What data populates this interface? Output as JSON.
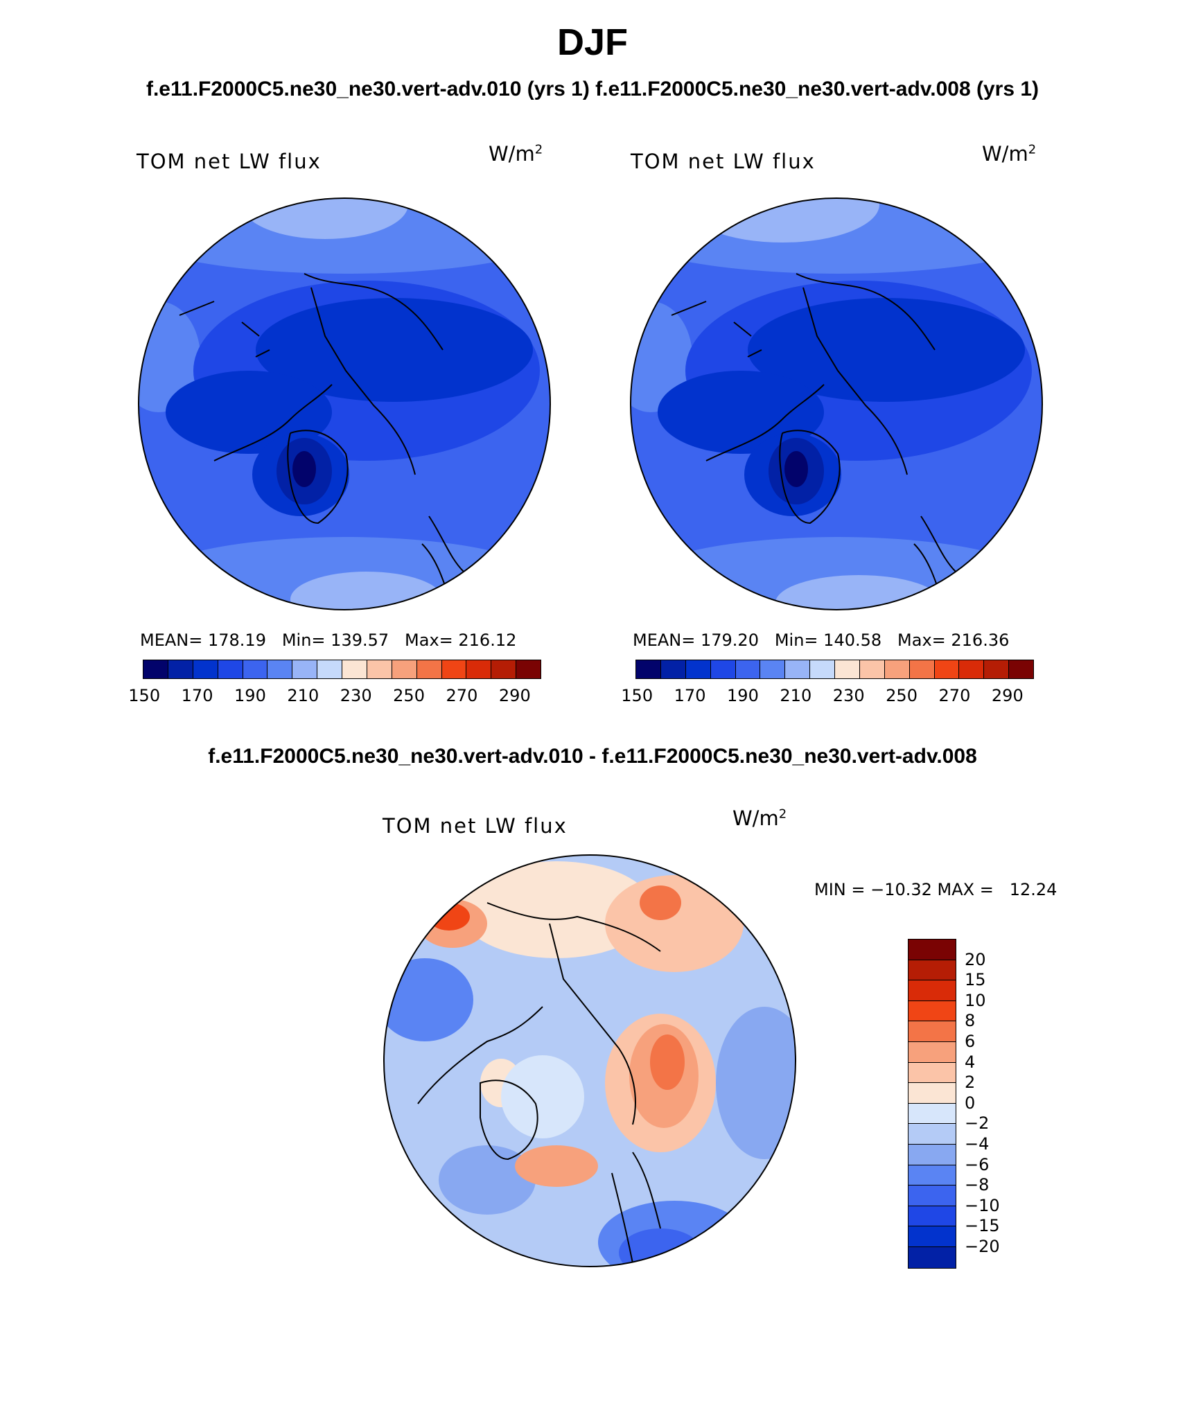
{
  "season": "DJF",
  "case_titles": "f.e11.F2000C5.ne30_ne30.vert-adv.010 (yrs 1) f.e11.F2000C5.ne30_ne30.vert-adv.008 (yrs 1)",
  "diff_title": "f.e11.F2000C5.ne30_ne30.vert-adv.010 - f.e11.F2000C5.ne30_ne30.vert-adv.008",
  "panels": [
    {
      "title": "TOM net LW flux",
      "units_base": "W/m",
      "units_exp": "2",
      "stats": "MEAN= 178.19   Min= 139.57   Max= 216.12"
    },
    {
      "title": "TOM net LW flux",
      "units_base": "W/m",
      "units_exp": "2",
      "stats": "MEAN= 179.20   Min= 140.58   Max= 216.36"
    }
  ],
  "diff_panel": {
    "title": "TOM net LW flux",
    "units_base": "W/m",
    "units_exp": "2",
    "stats": "MIN = −10.32 MAX =   12.24"
  },
  "colors": {
    "abs_levels": [
      "#02036b",
      "#0221a6",
      "#0233cd",
      "#1f47e6",
      "#3c64ef",
      "#5a84f3",
      "#98b4f7",
      "#c6dafb",
      "#fbe5d4",
      "#fbc4a8",
      "#f7a17c",
      "#f37447",
      "#f04515",
      "#d92b08",
      "#b51d05",
      "#7a0303"
    ],
    "diff_levels": [
      "#7a0303",
      "#b51d05",
      "#d92b08",
      "#f04515",
      "#f37447",
      "#f7a17c",
      "#fbc4a8",
      "#fbe5d4",
      "#d7e6fb",
      "#b4cbf6",
      "#88a8f1",
      "#5a84f3",
      "#3c64ef",
      "#1f47e6",
      "#0233cd",
      "#0221a6"
    ]
  },
  "chart_data": [
    {
      "type": "heatmap",
      "projection": "north-polar-stereographic",
      "title": "TOM net LW flux",
      "units": "W/m2",
      "case": "f.e11.F2000C5.ne30_ne30.vert-adv.010 (yrs 1)",
      "mean": 178.19,
      "min": 139.57,
      "max": 216.12,
      "colorbar_levels": [
        150,
        160,
        170,
        180,
        190,
        200,
        210,
        220,
        230,
        240,
        250,
        260,
        270,
        280,
        290
      ],
      "colorbar_tick_labels": [
        "150",
        "170",
        "190",
        "210",
        "230",
        "250",
        "270",
        "290"
      ]
    },
    {
      "type": "heatmap",
      "projection": "north-polar-stereographic",
      "title": "TOM net LW flux",
      "units": "W/m2",
      "case": "f.e11.F2000C5.ne30_ne30.vert-adv.008 (yrs 1)",
      "mean": 179.2,
      "min": 140.58,
      "max": 216.36,
      "colorbar_levels": [
        150,
        160,
        170,
        180,
        190,
        200,
        210,
        220,
        230,
        240,
        250,
        260,
        270,
        280,
        290
      ],
      "colorbar_tick_labels": [
        "150",
        "170",
        "190",
        "210",
        "230",
        "250",
        "270",
        "290"
      ]
    },
    {
      "type": "heatmap",
      "projection": "north-polar-stereographic",
      "title": "TOM net LW flux",
      "units": "W/m2",
      "case": "f.e11.F2000C5.ne30_ne30.vert-adv.010 - f.e11.F2000C5.ne30_ne30.vert-adv.008",
      "min": -10.32,
      "max": 12.24,
      "colorbar_levels": [
        20,
        15,
        10,
        8,
        6,
        4,
        2,
        0,
        -2,
        -4,
        -6,
        -8,
        -10,
        -15,
        -20
      ],
      "colorbar_tick_labels": [
        "20",
        "15",
        "10",
        "8",
        "6",
        "4",
        "2",
        "0",
        "−2",
        "−4",
        "−6",
        "−8",
        "−10",
        "−15",
        "−20"
      ]
    }
  ]
}
